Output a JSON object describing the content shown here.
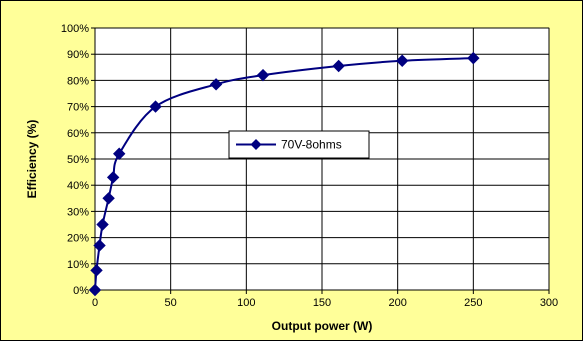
{
  "chart_data": {
    "type": "scatter",
    "title": "",
    "xlabel": "Output power (W)",
    "ylabel": "Efficiency (%)",
    "xlim": [
      0,
      300
    ],
    "ylim": [
      0,
      100
    ],
    "x_ticks": [
      "0",
      "50",
      "100",
      "150",
      "200",
      "250",
      "300"
    ],
    "y_ticks": [
      "0%",
      "10%",
      "20%",
      "30%",
      "40%",
      "50%",
      "60%",
      "70%",
      "80%",
      "90%",
      "100%"
    ],
    "grid": true,
    "legend_position": "center",
    "line_style": "smoothed line with diamond markers",
    "series": [
      {
        "name": "70V-8ohms",
        "color": "#000080",
        "x": [
          0,
          1,
          3,
          5,
          9,
          12,
          16,
          40,
          80,
          111,
          161,
          203,
          250
        ],
        "y": [
          0,
          7.5,
          17,
          25,
          35,
          43,
          52,
          70,
          78.5,
          82,
          85.5,
          87.5,
          88.5
        ]
      }
    ]
  }
}
